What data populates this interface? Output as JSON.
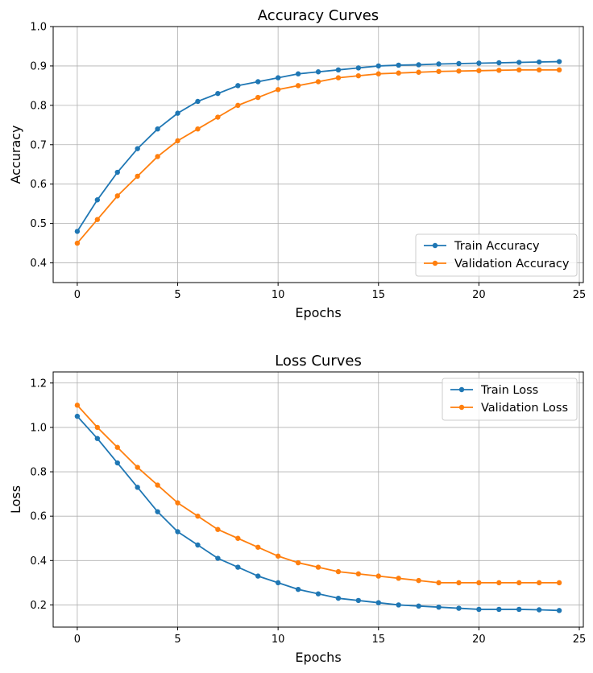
{
  "colors": {
    "train": "#1f77b4",
    "validation": "#ff7f0e"
  },
  "chart_data": [
    {
      "type": "line",
      "title": "Accuracy Curves",
      "xlabel": "Epochs",
      "ylabel": "Accuracy",
      "xlim": [
        -1.2,
        25.2
      ],
      "ylim": [
        0.35,
        1.0
      ],
      "xticks": [
        0,
        5,
        10,
        15,
        20,
        25
      ],
      "yticks": [
        0.4,
        0.5,
        0.6,
        0.7,
        0.8,
        0.9,
        1.0
      ],
      "grid": true,
      "legend_position": "lower-right",
      "x": [
        0,
        1,
        2,
        3,
        4,
        5,
        6,
        7,
        8,
        9,
        10,
        11,
        12,
        13,
        14,
        15,
        16,
        17,
        18,
        19,
        20,
        21,
        22,
        23,
        24
      ],
      "series": [
        {
          "name": "Train Accuracy",
          "color": "#1f77b4",
          "values": [
            0.48,
            0.56,
            0.63,
            0.69,
            0.74,
            0.78,
            0.81,
            0.83,
            0.85,
            0.86,
            0.87,
            0.88,
            0.885,
            0.89,
            0.895,
            0.9,
            0.902,
            0.903,
            0.905,
            0.906,
            0.907,
            0.908,
            0.909,
            0.91,
            0.911
          ]
        },
        {
          "name": "Validation Accuracy",
          "color": "#ff7f0e",
          "values": [
            0.45,
            0.51,
            0.57,
            0.62,
            0.67,
            0.71,
            0.74,
            0.77,
            0.8,
            0.82,
            0.84,
            0.85,
            0.86,
            0.87,
            0.875,
            0.88,
            0.882,
            0.884,
            0.886,
            0.887,
            0.888,
            0.889,
            0.89,
            0.89,
            0.89
          ]
        }
      ]
    },
    {
      "type": "line",
      "title": "Loss Curves",
      "xlabel": "Epochs",
      "ylabel": "Loss",
      "xlim": [
        -1.2,
        25.2
      ],
      "ylim": [
        0.1,
        1.25
      ],
      "xticks": [
        0,
        5,
        10,
        15,
        20,
        25
      ],
      "yticks": [
        0.2,
        0.4,
        0.6,
        0.8,
        1.0,
        1.2
      ],
      "grid": true,
      "legend_position": "upper-right",
      "x": [
        0,
        1,
        2,
        3,
        4,
        5,
        6,
        7,
        8,
        9,
        10,
        11,
        12,
        13,
        14,
        15,
        16,
        17,
        18,
        19,
        20,
        21,
        22,
        23,
        24
      ],
      "series": [
        {
          "name": "Train Loss",
          "color": "#1f77b4",
          "values": [
            1.05,
            0.95,
            0.84,
            0.73,
            0.62,
            0.53,
            0.47,
            0.41,
            0.37,
            0.33,
            0.3,
            0.27,
            0.25,
            0.23,
            0.22,
            0.21,
            0.2,
            0.195,
            0.19,
            0.185,
            0.18,
            0.18,
            0.18,
            0.178,
            0.175
          ]
        },
        {
          "name": "Validation Loss",
          "color": "#ff7f0e",
          "values": [
            1.1,
            1.0,
            0.91,
            0.82,
            0.74,
            0.66,
            0.6,
            0.54,
            0.5,
            0.46,
            0.42,
            0.39,
            0.37,
            0.35,
            0.34,
            0.33,
            0.32,
            0.31,
            0.3,
            0.3,
            0.3,
            0.3,
            0.3,
            0.3,
            0.3
          ]
        }
      ]
    }
  ]
}
